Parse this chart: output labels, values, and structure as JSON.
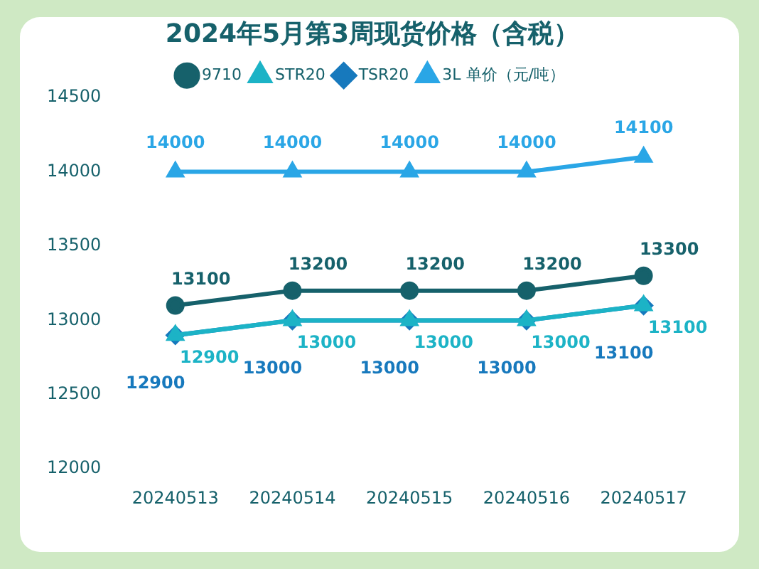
{
  "chart_data": {
    "type": "line",
    "title": "2024年5月第3周现货价格（含税）",
    "categories": [
      "20240513",
      "20240514",
      "20240515",
      "20240516",
      "20240517"
    ],
    "series": [
      {
        "name": "9710",
        "color": "#16616b",
        "values": [
          13100,
          13200,
          13200,
          13200,
          13300
        ],
        "marker": "circle"
      },
      {
        "name": "STR20",
        "color": "#1cb3c6",
        "values": [
          12900,
          13000,
          13000,
          13000,
          13100
        ],
        "marker": "triangle"
      },
      {
        "name": "TSR20",
        "color": "#1779bd",
        "values": [
          12900,
          13000,
          13000,
          13000,
          13100
        ],
        "marker": "diamond"
      },
      {
        "name": "3L 单价（元/吨）",
        "color": "#2aa6e6",
        "values": [
          14000,
          14000,
          14000,
          14000,
          14100
        ],
        "marker": "triangle"
      }
    ],
    "ylim": [
      12000,
      14500
    ],
    "yticks": [
      12000,
      12500,
      13000,
      13500,
      14000,
      14500
    ],
    "legend": "top",
    "data_labels": true
  }
}
